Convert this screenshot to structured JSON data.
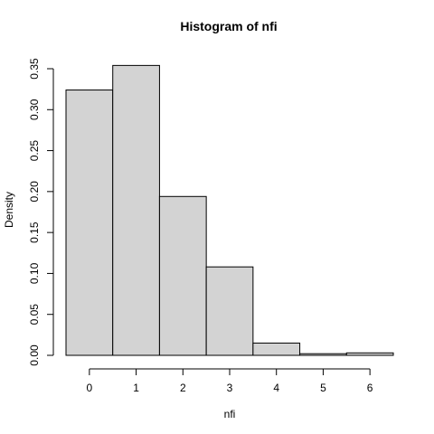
{
  "chart_data": {
    "type": "bar",
    "title": "Histogram of nfi",
    "xlabel": "nfi",
    "ylabel": "Density",
    "bins": [
      {
        "from": -0.5,
        "to": 0.5,
        "density": 0.324
      },
      {
        "from": 0.5,
        "to": 1.5,
        "density": 0.354
      },
      {
        "from": 1.5,
        "to": 2.5,
        "density": 0.194
      },
      {
        "from": 2.5,
        "to": 3.5,
        "density": 0.108
      },
      {
        "from": 3.5,
        "to": 4.5,
        "density": 0.015
      },
      {
        "from": 4.5,
        "to": 5.5,
        "density": 0.002
      },
      {
        "from": 5.5,
        "to": 6.5,
        "density": 0.003
      }
    ],
    "xlim": [
      -0.5,
      6.5
    ],
    "ylim": [
      0,
      0.35
    ],
    "xticks": [
      0,
      1,
      2,
      3,
      4,
      5,
      6
    ],
    "yticks": [
      0.0,
      0.05,
      0.1,
      0.15,
      0.2,
      0.25,
      0.3,
      0.35
    ],
    "ytick_labels": [
      "0.00",
      "0.05",
      "0.10",
      "0.15",
      "0.20",
      "0.25",
      "0.30",
      "0.35"
    ],
    "bar_fill": "#d3d3d3",
    "grid": false,
    "legend": "none"
  }
}
